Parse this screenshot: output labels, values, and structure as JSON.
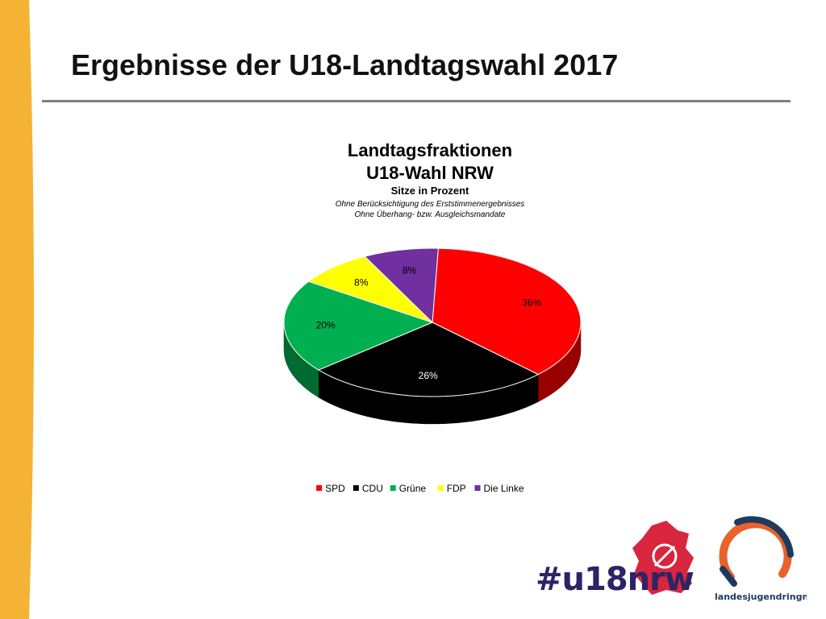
{
  "slide": {
    "title": "Ergebnisse der U18-Landtagswahl 2017"
  },
  "colors": {
    "left_bar": "#f5b335",
    "rule": "#7f7f7f",
    "spd": "#ff0000",
    "cdu": "#000000",
    "gruene": "#00b050",
    "fdp": "#ffff00",
    "linke": "#7030a0",
    "ljr_blue": "#1f3a60",
    "ljr_orange": "#e8622a",
    "u18_red": "#d7263d",
    "u18_navy": "#2d2466"
  },
  "chart_data": {
    "type": "pie",
    "three_d": true,
    "title": "Landtagsfraktionen",
    "subtitle": "U18-Wahl NRW",
    "subtitle2": "Sitze in Prozent",
    "notes": [
      "Ohne Berücksichtigung des Erststimmenergebnisses",
      "Ohne Überhang- bzw. Ausgleichsmandate"
    ],
    "unit": "%",
    "legend_position": "bottom",
    "slices": [
      {
        "name": "SPD",
        "value": 36,
        "label": "36%",
        "color": "#ff0000"
      },
      {
        "name": "CDU",
        "value": 26,
        "label": "26%",
        "color": "#000000"
      },
      {
        "name": "Grüne",
        "value": 20,
        "label": "20%",
        "color": "#00b050"
      },
      {
        "name": "FDP",
        "value": 8,
        "label": "8%",
        "color": "#ffff00"
      },
      {
        "name": "Die Linke",
        "value": 8,
        "label": "8%",
        "color": "#7030a0"
      }
    ]
  },
  "logos": {
    "u18": "#u18nrw",
    "landesjugendring": "landesjugendringnrw"
  }
}
